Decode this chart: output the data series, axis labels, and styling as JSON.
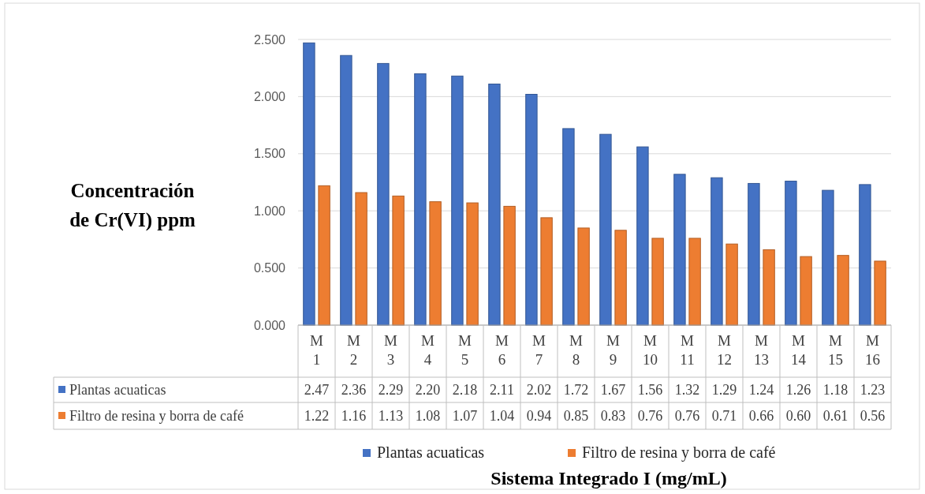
{
  "chart_data": {
    "type": "bar",
    "ylabel": "Concentración de Cr(VI) ppm",
    "annotations": [
      "Sistema Integrado I (mg/mL)"
    ],
    "categories": [
      "M 1",
      "M 2",
      "M 3",
      "M 4",
      "M 5",
      "M 6",
      "M 7",
      "M 8",
      "M 9",
      "M 10",
      "M 11",
      "M 12",
      "M 13",
      "M 14",
      "M 15",
      "M 16"
    ],
    "series": [
      {
        "name": "Plantas acuaticas",
        "color": "#4472c4",
        "values": [
          2.47,
          2.36,
          2.29,
          2.2,
          2.18,
          2.11,
          2.02,
          1.72,
          1.67,
          1.56,
          1.32,
          1.29,
          1.24,
          1.26,
          1.18,
          1.23
        ],
        "value_labels": [
          "2.47",
          "2.36",
          "2.29",
          "2.20",
          "2.18",
          "2.11",
          "2.02",
          "1.72",
          "1.67",
          "1.56",
          "1.32",
          "1.29",
          "1.24",
          "1.26",
          "1.18",
          "1.23"
        ]
      },
      {
        "name": "Filtro de resina y borra de café",
        "color": "#ed7d31",
        "values": [
          1.22,
          1.16,
          1.13,
          1.08,
          1.07,
          1.04,
          0.94,
          0.85,
          0.83,
          0.76,
          0.76,
          0.71,
          0.66,
          0.6,
          0.61,
          0.56
        ],
        "value_labels": [
          "1.22",
          "1.16",
          "1.13",
          "1.08",
          "1.07",
          "1.04",
          "0.94",
          "0.85",
          "0.83",
          "0.76",
          "0.76",
          "0.71",
          "0.66",
          "0.60",
          "0.61",
          "0.56"
        ]
      }
    ],
    "ylim": [
      0,
      2.5
    ],
    "yticks": [
      {
        "value": 0,
        "label": "0.000"
      },
      {
        "value": 0.5,
        "label": "0.500"
      },
      {
        "value": 1,
        "label": "1.000"
      },
      {
        "value": 1.5,
        "label": "1.500"
      },
      {
        "value": 2,
        "label": "2.000"
      },
      {
        "value": 2.5,
        "label": "2.500"
      }
    ],
    "grid": "y",
    "legend": "bottom"
  }
}
